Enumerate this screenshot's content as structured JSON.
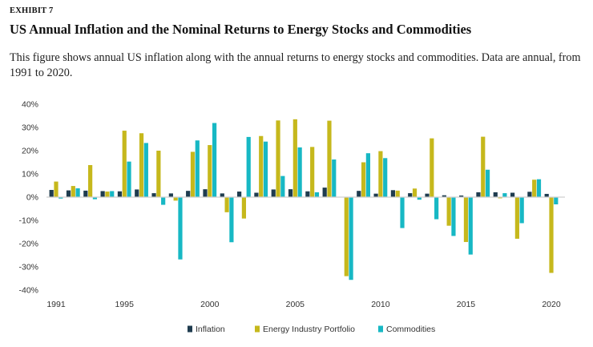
{
  "exhibit_label": "EXHIBIT 7",
  "title": "US Annual Inflation and the Nominal Returns to Energy Stocks and Commodities",
  "description": "This figure shows annual US inflation along with the annual returns to energy stocks and commodities. Data are annual, from 1991 to 2020.",
  "colors": {
    "inflation": "#1f3c4f",
    "energy": "#c6b81c",
    "commodities": "#17b8c4"
  },
  "chart_data": {
    "type": "bar",
    "title": "US Annual Inflation and the Nominal Returns to Energy Stocks and Commodities",
    "xlabel": "",
    "ylabel": "",
    "ylim": [
      -40,
      40
    ],
    "yticks": [
      "40%",
      "30%",
      "20%",
      "10%",
      "0%",
      "-10%",
      "-20%",
      "-30%",
      "-40%"
    ],
    "ytick_values": [
      40,
      30,
      20,
      10,
      0,
      -10,
      -20,
      -30,
      -40
    ],
    "categories": [
      1991,
      1992,
      1993,
      1994,
      1995,
      1996,
      1997,
      1998,
      1999,
      2000,
      2001,
      2002,
      2003,
      2004,
      2005,
      2006,
      2007,
      2008,
      2009,
      2010,
      2011,
      2012,
      2013,
      2014,
      2015,
      2016,
      2017,
      2018,
      2019,
      2020
    ],
    "xtick_labels": [
      "1991",
      "1995",
      "2000",
      "2005",
      "2010",
      "2015",
      "2020"
    ],
    "xtick_years": [
      1991,
      1995,
      2000,
      2005,
      2010,
      2015,
      2020
    ],
    "legend": [
      "Inflation",
      "Energy Industry Portfolio",
      "Commodities"
    ],
    "legend_position": "bottom-center",
    "series": [
      {
        "name": "Inflation",
        "values": [
          3.1,
          2.9,
          2.8,
          2.6,
          2.5,
          3.3,
          1.7,
          1.6,
          2.7,
          3.4,
          1.6,
          2.4,
          1.9,
          3.3,
          3.4,
          2.5,
          4.1,
          0.1,
          2.7,
          1.5,
          3.0,
          1.7,
          1.5,
          0.8,
          0.7,
          2.1,
          2.1,
          1.9,
          2.3,
          1.4
        ]
      },
      {
        "name": "Energy Industry Portfolio",
        "values": [
          6.7,
          4.8,
          13.8,
          2.4,
          28.6,
          27.5,
          20.0,
          -1.5,
          19.5,
          22.4,
          -6.5,
          -9.2,
          26.3,
          33.0,
          33.5,
          21.6,
          32.9,
          -34.0,
          15.0,
          19.8,
          2.8,
          3.7,
          25.3,
          -12.3,
          -19.3,
          26.0,
          -0.5,
          -17.9,
          7.5,
          -32.6
        ]
      },
      {
        "name": "Commodities",
        "values": [
          -0.6,
          3.8,
          -0.9,
          2.6,
          15.3,
          23.3,
          -3.3,
          -26.8,
          24.4,
          31.9,
          -19.4,
          25.9,
          23.9,
          9.1,
          21.4,
          2.1,
          16.2,
          -35.6,
          18.9,
          16.8,
          -13.3,
          -1.1,
          -9.5,
          -16.7,
          -24.7,
          11.8,
          1.7,
          -11.2,
          7.7,
          -3.1
        ]
      }
    ]
  }
}
